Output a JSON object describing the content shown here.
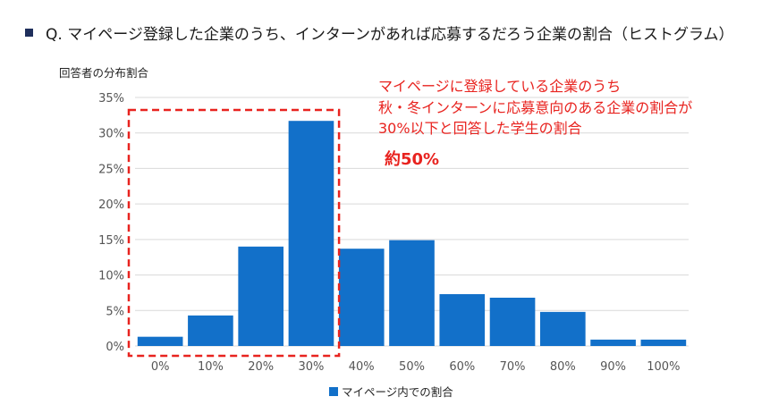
{
  "question": "Q. マイページ登録した企業のうち、インターンがあれば応募するだろう企業の割合（ヒストグラム）",
  "annotation": {
    "lines": [
      "マイページに登録している企業のうち",
      "秋・冬インターンに応募意向のある企業の割合が",
      "30%以下と回答した学生の割合"
    ],
    "highlight": "約50%"
  },
  "colors": {
    "bar": "#1270c9",
    "annotation": "#e8231f",
    "grid": "#d9d9d9"
  },
  "chart_data": {
    "type": "bar",
    "title": "",
    "ylabel": "回答者の分布割合",
    "xlabel": "",
    "categories": [
      "0%",
      "10%",
      "20%",
      "30%",
      "40%",
      "50%",
      "60%",
      "70%",
      "80%",
      "90%",
      "100%"
    ],
    "series": [
      {
        "name": "マイページ内での割合",
        "values": [
          1.3,
          4.3,
          14.0,
          31.7,
          13.7,
          14.9,
          7.3,
          6.8,
          4.8,
          0.9,
          0.9
        ]
      }
    ],
    "ylim": [
      0,
      35
    ],
    "yticks": [
      0,
      5,
      10,
      15,
      20,
      25,
      30,
      35
    ],
    "ytick_labels": [
      "0%",
      "5%",
      "10%",
      "15%",
      "20%",
      "25%",
      "30%",
      "35%"
    ],
    "grid": true,
    "legend": "bottom",
    "highlight_categories": [
      "0%",
      "10%",
      "20%",
      "30%"
    ]
  }
}
